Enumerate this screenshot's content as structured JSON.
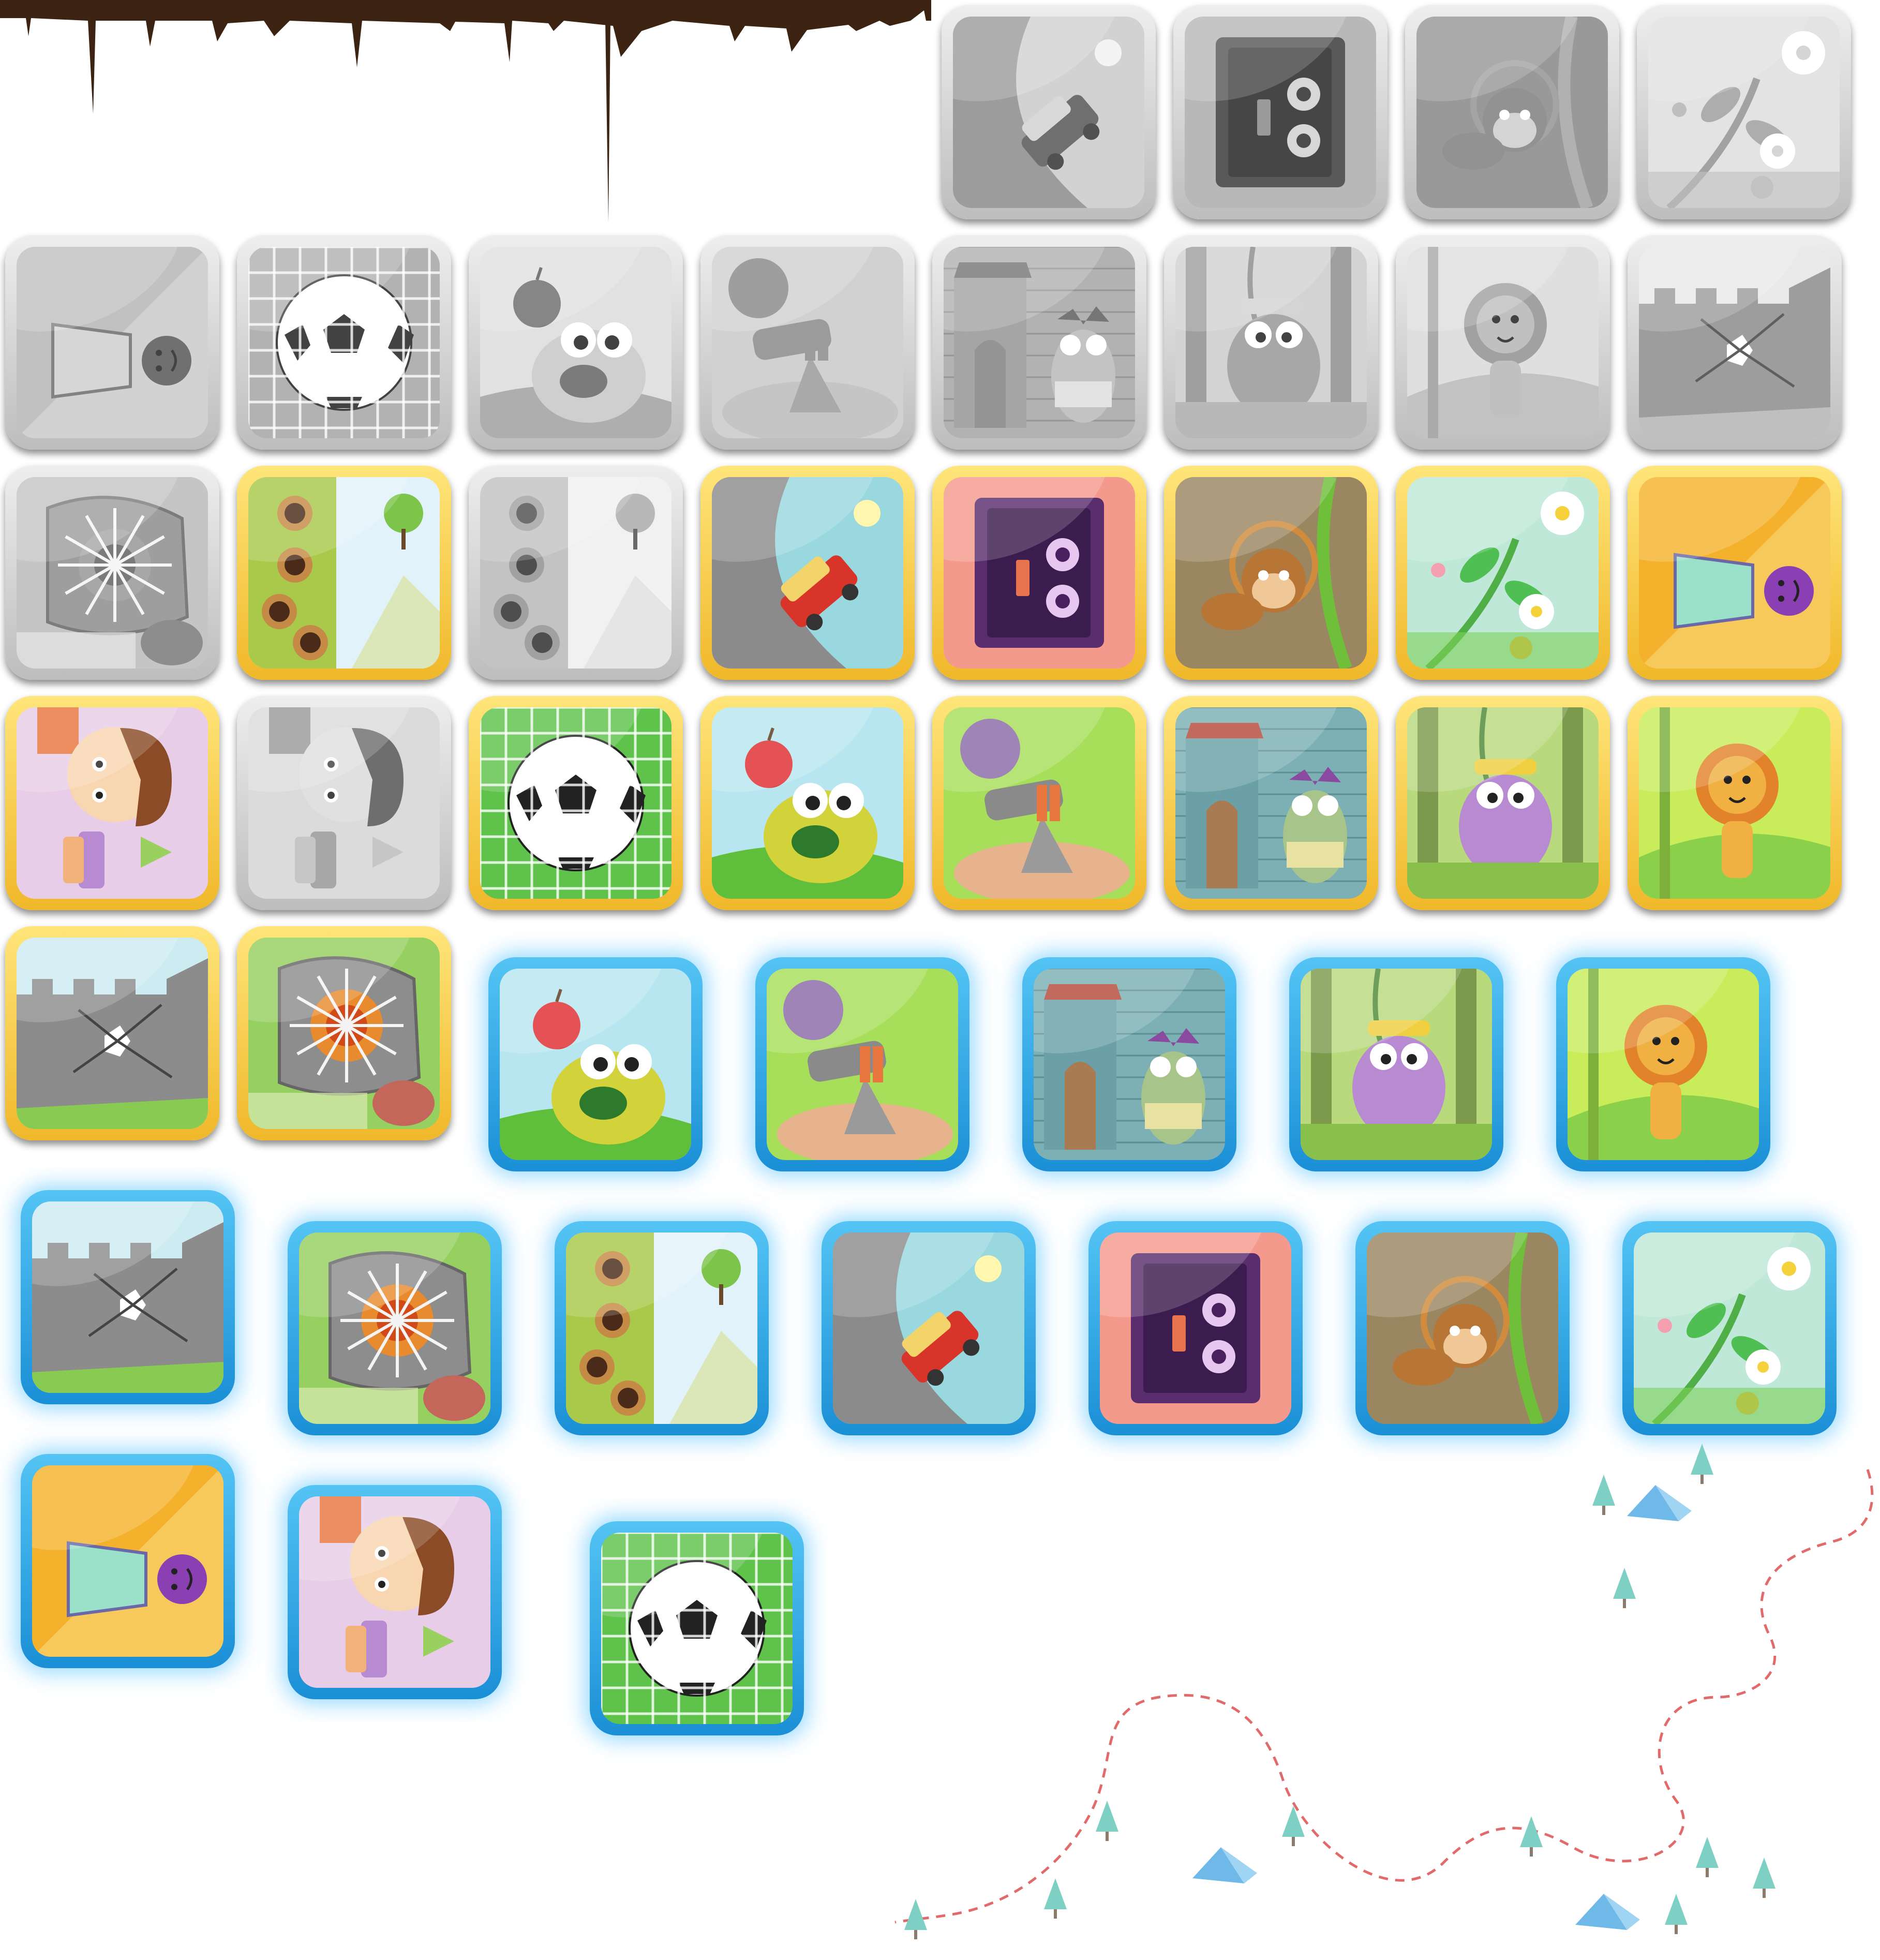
{
  "sheet": {
    "type": "level-select icon sprite sheet",
    "states": [
      "locked",
      "unlocked",
      "selected"
    ]
  },
  "colors": {
    "locked_frame": "#c8c8c8",
    "unlocked_frame": "#f4c43a",
    "selected_frame": "#34aaea",
    "drip": "#3d2412",
    "path": "#e26a6a",
    "tree": "#7fd0c4",
    "tent": "#6fb9e8"
  },
  "themes": {
    "car": {
      "icon": "car-icon",
      "bg": "#9ad8e0",
      "ground": "#8cd24a"
    },
    "book": {
      "icon": "monster-book-icon",
      "bg": "#f49a8c",
      "ground": "#5a2e6e"
    },
    "monkey": {
      "icon": "monkey-icon",
      "bg": "#9a8660",
      "ground": "#7a5a3a"
    },
    "flower": {
      "icon": "flower-icon",
      "bg": "#bfe8d8",
      "ground": "#7ed058"
    },
    "gym": {
      "icon": "purple-gymnast-icon",
      "bg": "#f4b22c",
      "ground": "#9be0c8"
    },
    "boy": {
      "icon": "boy-icon",
      "bg": "#e8cde8",
      "ground": "#f2b37a"
    },
    "ball": {
      "icon": "soccer-ball-icon",
      "bg": "#5fc24b",
      "ground": "#4aa83c"
    },
    "apple": {
      "icon": "apple-monster-icon",
      "bg": "#b8e6f0",
      "ground": "#5fbf3a"
    },
    "cannon": {
      "icon": "cannon-icon",
      "bg": "#a7de5a",
      "ground": "#e7b38d"
    },
    "owl": {
      "icon": "owl-house-icon",
      "bg": "#7cb0b4",
      "ground": "#a87b52"
    },
    "pig": {
      "icon": "pig-jungle-icon",
      "bg": "#b9d97d",
      "ground": "#88c04b"
    },
    "lion": {
      "icon": "lion-icon",
      "bg": "#c8ec5a",
      "ground": "#f0b042"
    },
    "wall": {
      "icon": "cracked-wall-icon",
      "bg": "#cdecf2",
      "ground": "#89cb52"
    },
    "rock": {
      "icon": "cracked-rock-icon",
      "bg": "#96d060",
      "ground": "#d7e9b0"
    },
    "holes": {
      "icon": "holes-wall-icon",
      "bg": "#e2f2fa",
      "ground": "#a6c84a"
    }
  },
  "tiles": [
    {
      "theme": "car",
      "state": "locked"
    },
    {
      "theme": "book",
      "state": "locked"
    },
    {
      "theme": "monkey",
      "state": "locked"
    },
    {
      "theme": "flower",
      "state": "locked"
    },
    {
      "theme": "gym",
      "state": "locked"
    },
    {
      "theme": "ball",
      "state": "locked"
    },
    {
      "theme": "apple",
      "state": "locked"
    },
    {
      "theme": "cannon",
      "state": "locked"
    },
    {
      "theme": "owl",
      "state": "locked"
    },
    {
      "theme": "pig",
      "state": "locked"
    },
    {
      "theme": "lion",
      "state": "locked"
    },
    {
      "theme": "wall",
      "state": "locked"
    },
    {
      "theme": "rock",
      "state": "locked"
    },
    {
      "theme": "holes",
      "state": "unlocked"
    },
    {
      "theme": "holes",
      "state": "locked"
    },
    {
      "theme": "car",
      "state": "unlocked"
    },
    {
      "theme": "book",
      "state": "unlocked"
    },
    {
      "theme": "monkey",
      "state": "unlocked"
    },
    {
      "theme": "flower",
      "state": "unlocked"
    },
    {
      "theme": "gym",
      "state": "unlocked"
    },
    {
      "theme": "boy",
      "state": "unlocked"
    },
    {
      "theme": "boy",
      "state": "locked"
    },
    {
      "theme": "ball",
      "state": "unlocked"
    },
    {
      "theme": "apple",
      "state": "unlocked"
    },
    {
      "theme": "cannon",
      "state": "unlocked"
    },
    {
      "theme": "owl",
      "state": "unlocked"
    },
    {
      "theme": "pig",
      "state": "unlocked"
    },
    {
      "theme": "lion",
      "state": "unlocked"
    },
    {
      "theme": "wall",
      "state": "unlocked"
    },
    {
      "theme": "rock",
      "state": "unlocked"
    },
    {
      "theme": "apple",
      "state": "selected"
    },
    {
      "theme": "cannon",
      "state": "selected"
    },
    {
      "theme": "owl",
      "state": "selected"
    },
    {
      "theme": "pig",
      "state": "selected"
    },
    {
      "theme": "lion",
      "state": "selected"
    },
    {
      "theme": "wall",
      "state": "selected"
    },
    {
      "theme": "rock",
      "state": "selected"
    },
    {
      "theme": "holes",
      "state": "selected"
    },
    {
      "theme": "car",
      "state": "selected"
    },
    {
      "theme": "book",
      "state": "selected"
    },
    {
      "theme": "monkey",
      "state": "selected"
    },
    {
      "theme": "flower",
      "state": "selected"
    },
    {
      "theme": "gym",
      "state": "selected"
    },
    {
      "theme": "boy",
      "state": "selected"
    },
    {
      "theme": "ball",
      "state": "selected"
    }
  ]
}
